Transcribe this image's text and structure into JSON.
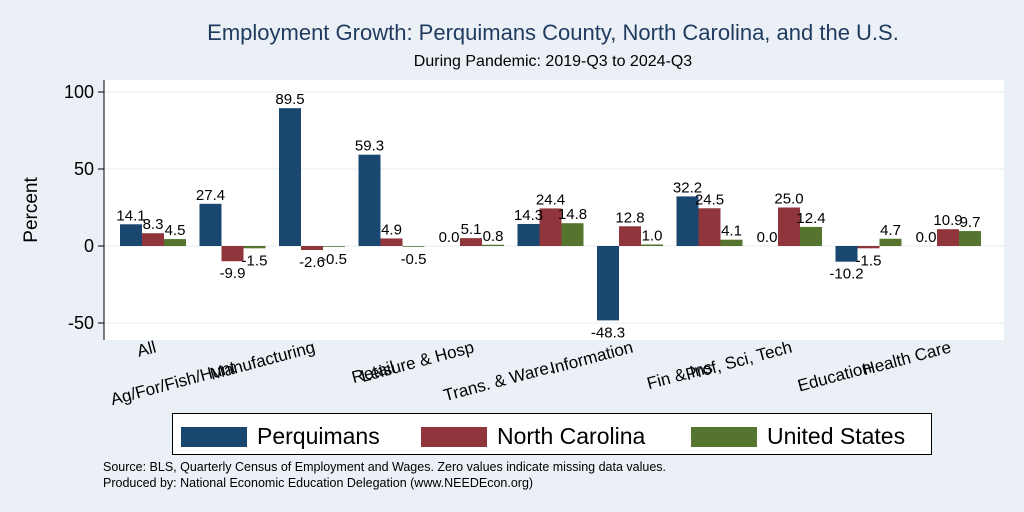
{
  "chart_data": {
    "type": "bar",
    "title": "Employment Growth: Perquimans County, North Carolina, and the U.S.",
    "subtitle": "During Pandemic: 2019-Q3 to 2024-Q3",
    "ylabel": "Percent",
    "xlabel": "",
    "ylim": [
      -60,
      110
    ],
    "yticks": [
      -50,
      0,
      50,
      100
    ],
    "grid": true,
    "legend_position": "bottom",
    "categories": [
      "All",
      "Ag/For/Fish/Hunt",
      "Manufacturing",
      "Retail",
      "Leisure & Hosp",
      "Trans. & Ware.",
      "Information",
      "Fin & Ins",
      "Prof, Sci, Tech",
      "Education",
      "Health Care"
    ],
    "series": [
      {
        "name": "Perquimans",
        "color": "#1a476f",
        "values": [
          14.1,
          27.4,
          89.5,
          59.3,
          0.0,
          14.3,
          -48.3,
          32.2,
          0.0,
          -10.2,
          0.0
        ]
      },
      {
        "name": "North Carolina",
        "color": "#90353b",
        "values": [
          8.3,
          -9.9,
          -2.6,
          4.9,
          5.1,
          24.4,
          12.8,
          24.5,
          25.0,
          -1.5,
          10.9
        ]
      },
      {
        "name": "United States",
        "color": "#55752f",
        "values": [
          4.5,
          -1.5,
          -0.5,
          -0.5,
          0.8,
          14.8,
          1.0,
          4.1,
          12.4,
          4.7,
          9.7
        ]
      }
    ]
  },
  "footnotes": {
    "source": "Source: BLS, Quarterly Census of Employment and Wages. Zero values indicate missing data values.",
    "produced_by": "Produced by: National Economic Education Delegation (www.NEEDEcon.org)"
  }
}
